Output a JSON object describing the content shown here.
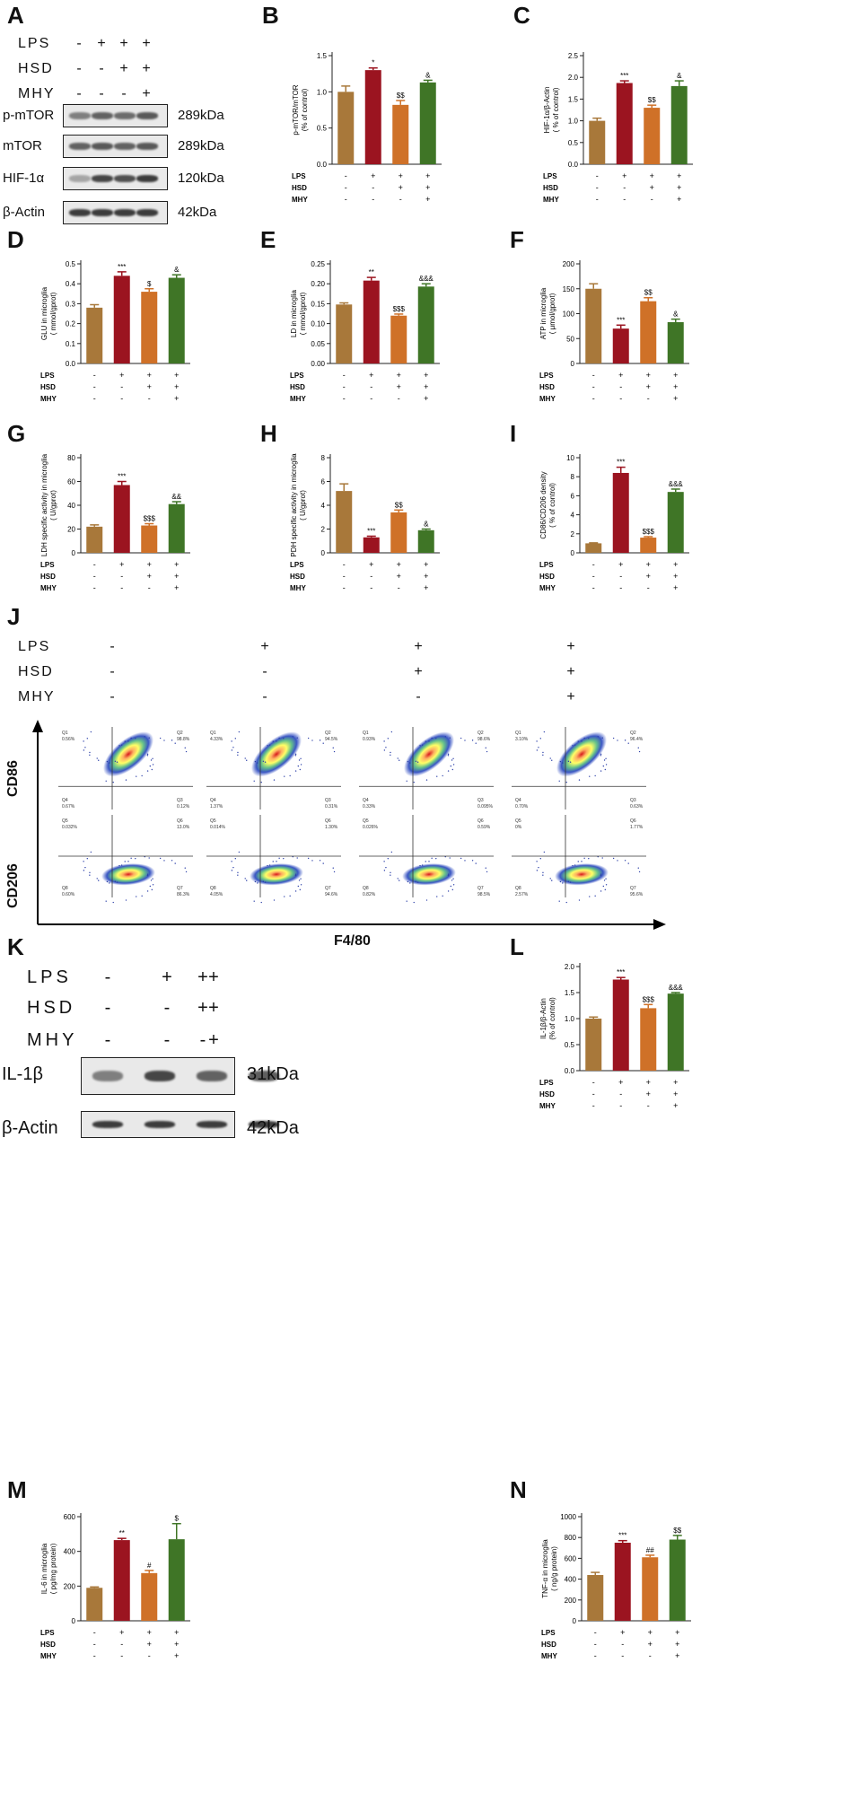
{
  "panel_letters": [
    "A",
    "B",
    "C",
    "D",
    "E",
    "F",
    "G",
    "H",
    "I",
    "J",
    "K",
    "L",
    "M",
    "N"
  ],
  "condition_rows": [
    "LPS",
    "HSD",
    "MHY"
  ],
  "signs": {
    "LPS": [
      "-",
      "+",
      "+",
      "+"
    ],
    "HSD": [
      "-",
      "-",
      "+",
      "+"
    ],
    "MHY": [
      "-",
      "-",
      "-",
      "+"
    ]
  },
  "blot_A": {
    "rows": [
      {
        "name": "p-mTOR",
        "kda": "289kDa"
      },
      {
        "name": "mTOR",
        "kda": "289kDa"
      },
      {
        "name": "HIF-1α",
        "kda": "120kDa"
      },
      {
        "name": "β-Actin",
        "kda": "42kDa"
      }
    ]
  },
  "blot_K": {
    "rows": [
      {
        "name": "IL-1β",
        "kda": "31kDa"
      },
      {
        "name": "β-Actin",
        "kda": "42kDa"
      }
    ]
  },
  "colors": {
    "c1": "#a8783a",
    "c2": "#9b1420",
    "c3": "#cf7128",
    "c4": "#3f7526"
  },
  "chart_data": [
    {
      "id": "B",
      "type": "bar",
      "ylabel": "p-mTOR/mTOR\n(% of control)",
      "ylim": [
        0,
        1.5
      ],
      "ticks": [
        "0.0",
        "0.5",
        "1.0",
        "1.5"
      ],
      "tickvals": [
        0,
        0.5,
        1.0,
        1.5
      ],
      "values": [
        1.0,
        1.3,
        0.82,
        1.13
      ],
      "errors": [
        0.08,
        0.03,
        0.06,
        0.03
      ],
      "annotations": [
        "",
        "*",
        "$$",
        "&"
      ]
    },
    {
      "id": "C",
      "type": "bar",
      "ylabel": "HIF-1α/β-Actin\n( % of control)",
      "ylim": [
        0,
        2.5
      ],
      "ticks": [
        "0.0",
        "0.5",
        "1.0",
        "1.5",
        "2.0",
        "2.5"
      ],
      "tickvals": [
        0,
        0.5,
        1.0,
        1.5,
        2.0,
        2.5
      ],
      "values": [
        1.0,
        1.87,
        1.3,
        1.8
      ],
      "errors": [
        0.06,
        0.05,
        0.06,
        0.12
      ],
      "annotations": [
        "",
        "***",
        "$$",
        "&"
      ]
    },
    {
      "id": "D",
      "type": "bar",
      "ylabel": "GLU in microglia\n( mmol/gprot)",
      "ylim": [
        0,
        0.5
      ],
      "ticks": [
        "0.0",
        "0.1",
        "0.2",
        "0.3",
        "0.4",
        "0.5"
      ],
      "tickvals": [
        0,
        0.1,
        0.2,
        0.3,
        0.4,
        0.5
      ],
      "values": [
        0.28,
        0.44,
        0.36,
        0.43
      ],
      "errors": [
        0.015,
        0.02,
        0.015,
        0.015
      ],
      "annotations": [
        "",
        "***",
        "$",
        "&"
      ]
    },
    {
      "id": "E",
      "type": "bar",
      "ylabel": "LD in microglia\n( mmol/gprot)",
      "ylim": [
        0,
        0.25
      ],
      "ticks": [
        "0.00",
        "0.05",
        "0.10",
        "0.15",
        "0.20",
        "0.25"
      ],
      "tickvals": [
        0,
        0.05,
        0.1,
        0.15,
        0.2,
        0.25
      ],
      "values": [
        0.148,
        0.208,
        0.12,
        0.193
      ],
      "errors": [
        0.004,
        0.008,
        0.004,
        0.007
      ],
      "annotations": [
        "",
        "**",
        "$$$",
        "&&&"
      ]
    },
    {
      "id": "F",
      "type": "bar",
      "ylabel": "ATP in microglia\n( μmol/gprot)",
      "ylim": [
        0,
        200
      ],
      "ticks": [
        "0",
        "50",
        "100",
        "150",
        "200"
      ],
      "tickvals": [
        0,
        50,
        100,
        150,
        200
      ],
      "values": [
        150,
        70,
        125,
        83
      ],
      "errors": [
        10,
        7,
        7,
        6
      ],
      "annotations": [
        "",
        "***",
        "$$",
        "&"
      ]
    },
    {
      "id": "G",
      "type": "bar",
      "ylabel": "LDH specific activity in microglia\n( U/gprot)",
      "ylim": [
        0,
        80
      ],
      "ticks": [
        "0",
        "20",
        "40",
        "60",
        "80"
      ],
      "tickvals": [
        0,
        20,
        40,
        60,
        80
      ],
      "values": [
        22,
        57,
        23,
        41
      ],
      "errors": [
        1.5,
        3,
        1.5,
        2
      ],
      "annotations": [
        "",
        "***",
        "$$$",
        "&&"
      ]
    },
    {
      "id": "H",
      "type": "bar",
      "ylabel": "PDH specific activity in microglia\n( U/gprot)",
      "ylim": [
        0,
        8
      ],
      "ticks": [
        "0",
        "2",
        "4",
        "6",
        "8"
      ],
      "tickvals": [
        0,
        2,
        4,
        6,
        8
      ],
      "values": [
        5.2,
        1.3,
        3.4,
        1.9
      ],
      "errors": [
        0.6,
        0.1,
        0.2,
        0.1
      ],
      "annotations": [
        "",
        "***",
        "$$",
        "&"
      ]
    },
    {
      "id": "I",
      "type": "bar",
      "ylabel": "CD86/CD206 density\n( % of control)",
      "ylim": [
        0,
        10
      ],
      "ticks": [
        "0",
        "2",
        "4",
        "6",
        "8",
        "10"
      ],
      "tickvals": [
        0,
        2,
        4,
        6,
        8,
        10
      ],
      "values": [
        1.0,
        8.4,
        1.6,
        6.4
      ],
      "errors": [
        0.05,
        0.6,
        0.1,
        0.3
      ],
      "annotations": [
        "",
        "***",
        "$$$",
        "&&&"
      ]
    },
    {
      "id": "L",
      "type": "bar",
      "ylabel": "IL-1β/β-Actin\n(% of control)",
      "ylim": [
        0,
        2.0
      ],
      "ticks": [
        "0.0",
        "0.5",
        "1.0",
        "1.5",
        "2.0"
      ],
      "tickvals": [
        0,
        0.5,
        1.0,
        1.5,
        2.0
      ],
      "values": [
        1.0,
        1.75,
        1.2,
        1.48
      ],
      "errors": [
        0.03,
        0.04,
        0.07,
        0.02
      ],
      "annotations": [
        "",
        "***",
        "$$$",
        "&&&"
      ]
    },
    {
      "id": "M",
      "type": "bar",
      "ylabel": "IL-6 in microglia\n( pg/mg protein)",
      "ylim": [
        0,
        600
      ],
      "ticks": [
        "0",
        "200",
        "400",
        "600"
      ],
      "tickvals": [
        0,
        200,
        400,
        600
      ],
      "values": [
        190,
        465,
        275,
        470
      ],
      "errors": [
        5,
        10,
        15,
        90
      ],
      "annotations": [
        "",
        "**",
        "#",
        "$"
      ]
    },
    {
      "id": "N",
      "type": "bar",
      "ylabel": "TNF-α in microglia\n( ng/g protein)",
      "ylim": [
        0,
        1000
      ],
      "ticks": [
        "0",
        "200",
        "400",
        "600",
        "800",
        "1000"
      ],
      "tickvals": [
        0,
        200,
        400,
        600,
        800,
        1000
      ],
      "values": [
        440,
        750,
        610,
        780
      ],
      "errors": [
        25,
        20,
        20,
        40
      ],
      "annotations": [
        "",
        "***",
        "##",
        "$$"
      ]
    }
  ],
  "flow": {
    "xaxis_label": "F4/80",
    "row_labels": [
      "CD86",
      "CD206"
    ],
    "cd86_quadrants": [
      {
        "q1": "0.56%",
        "q2": "98.8%",
        "q4": "0.67%",
        "q3": "0.12%"
      },
      {
        "q1": "4.33%",
        "q2": "94.5%",
        "q4": "1.37%",
        "q3": "0.31%"
      },
      {
        "q1": "0.93%",
        "q2": "98.6%",
        "q4": "0.33%",
        "q3": "0.095%"
      },
      {
        "q1": "3.10%",
        "q2": "96.4%",
        "q4": "0.70%",
        "q3": "0.63%"
      }
    ],
    "cd206_quadrants": [
      {
        "q1": "0.032%",
        "q2": "13.0%",
        "q4": "0.60%",
        "q3": "86.3%"
      },
      {
        "q1": "0.014%",
        "q2": "1.30%",
        "q4": "4.05%",
        "q3": "94.6%"
      },
      {
        "q1": "0.026%",
        "q2": "0.59%",
        "q4": "0.82%",
        "q3": "98.5%"
      },
      {
        "q1": "0%",
        "q2": "1.77%",
        "q4": "2.57%",
        "q3": "95.6%"
      }
    ],
    "quadrant_names_cd86": [
      "Q1",
      "Q2",
      "Q4",
      "Q3"
    ],
    "quadrant_names_cd206": [
      "Q5",
      "Q6",
      "Q8",
      "Q7"
    ]
  }
}
